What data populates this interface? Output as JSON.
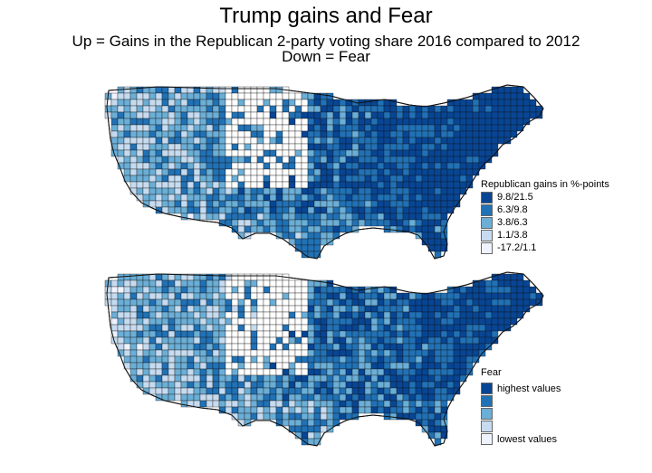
{
  "title": "Trump gains and Fear",
  "subtitle_line1": "Up = Gains in the Republican 2-party voting share 2016 compared to 2012",
  "subtitle_line2": "Down = Fear",
  "colors": {
    "c1": "#084594",
    "c2": "#2171b5",
    "c3": "#6baed6",
    "c4": "#c6dbef",
    "c5": "#eff3ff",
    "border": "#111111"
  },
  "map_top": {
    "legend_title": "Republican gains in %-points",
    "legend_items": [
      {
        "label": "9.8/21.5",
        "color": "#084594"
      },
      {
        "label": "6.3/9.8",
        "color": "#2171b5"
      },
      {
        "label": "3.8/6.3",
        "color": "#6baed6"
      },
      {
        "label": "1.1/3.8",
        "color": "#c6dbef"
      },
      {
        "label": "-17.2/1.1",
        "color": "#eff3ff"
      }
    ]
  },
  "map_bottom": {
    "legend_title": "Fear",
    "legend_items": [
      {
        "label": "highest values",
        "color": "#084594"
      },
      {
        "label": "",
        "color": "#2171b5"
      },
      {
        "label": "",
        "color": "#6baed6"
      },
      {
        "label": "",
        "color": "#c6dbef"
      },
      {
        "label": "lowest values",
        "color": "#eff3ff"
      }
    ]
  }
}
